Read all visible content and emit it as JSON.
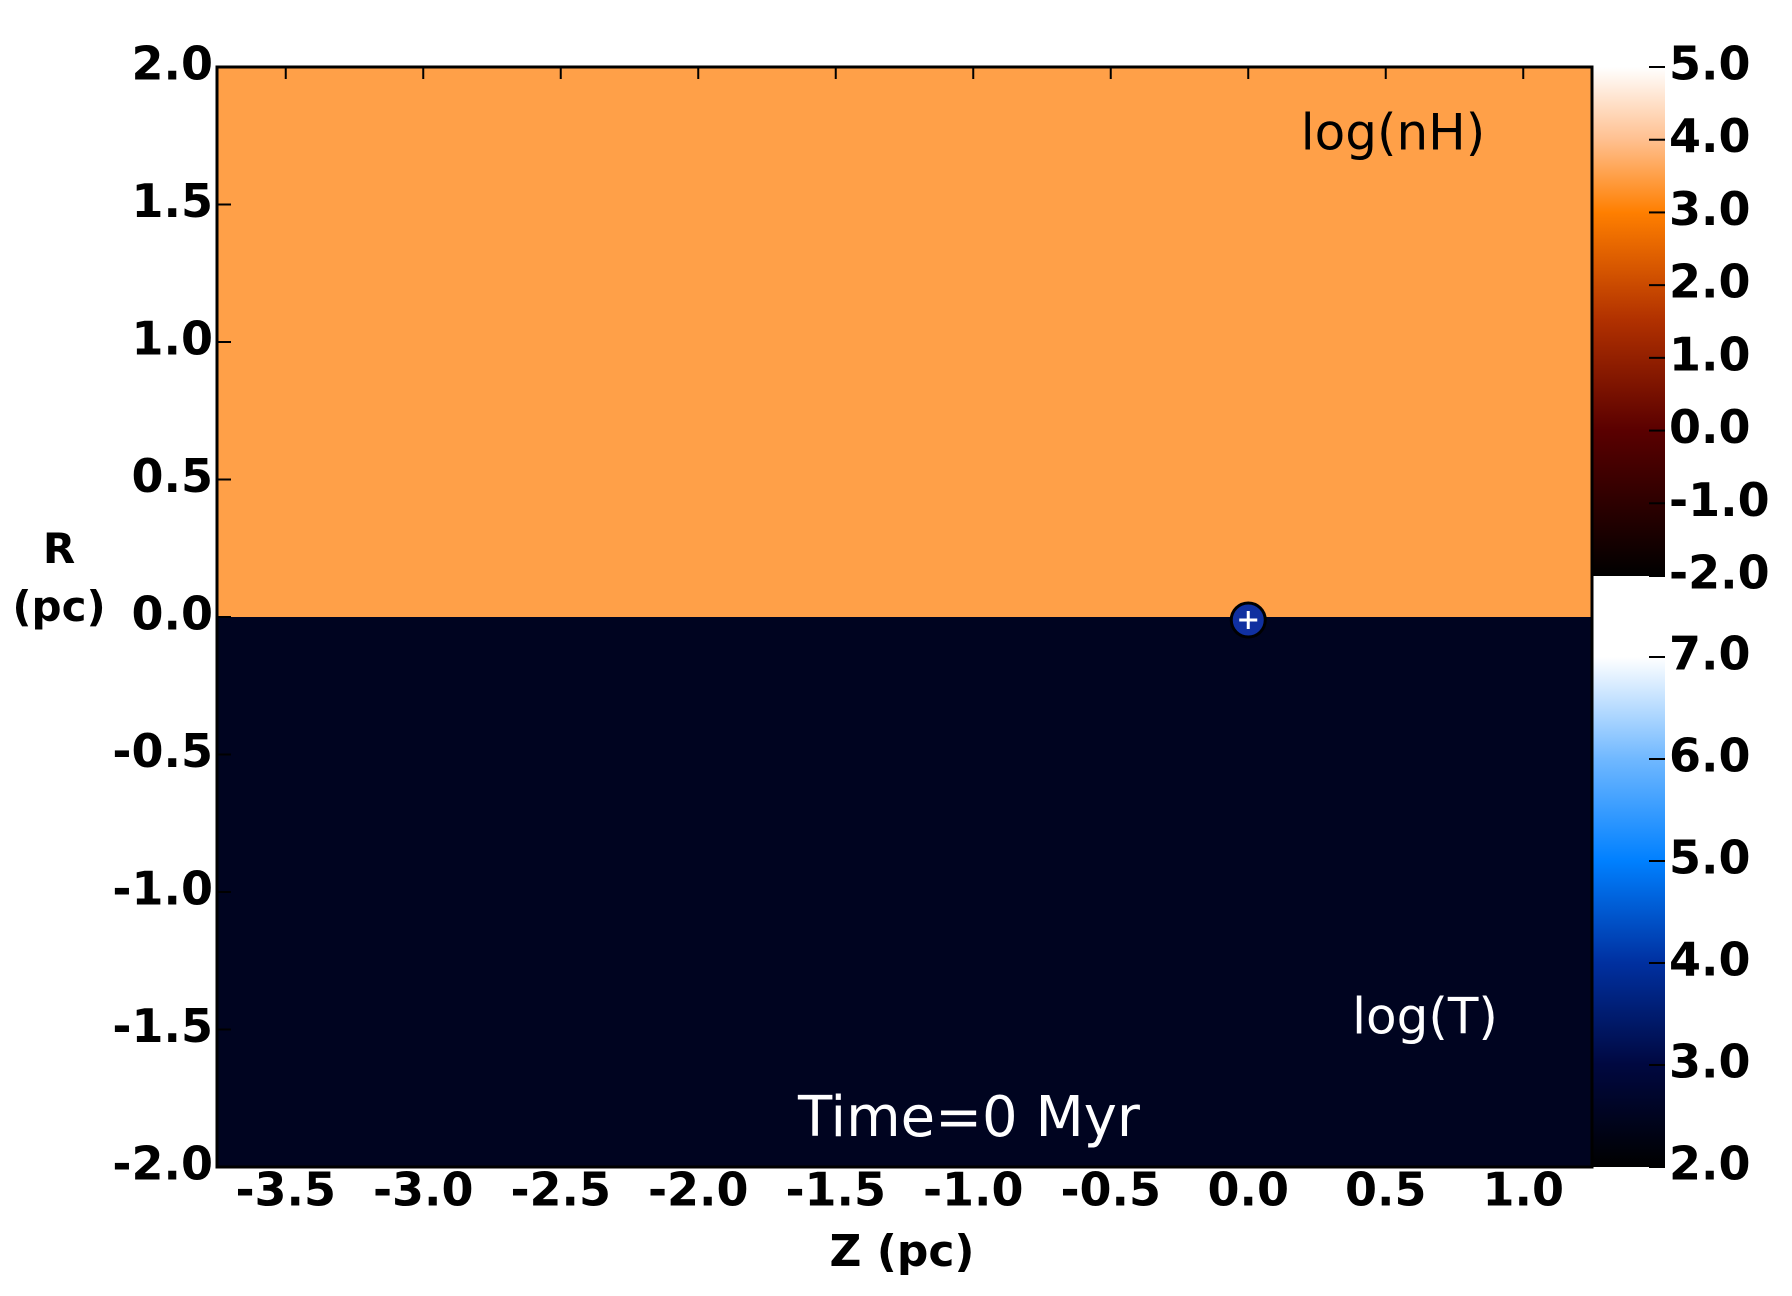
{
  "chart_data": {
    "type": "heatmap",
    "xlabel": "Z (pc)",
    "ylabel": "R (pc)",
    "xlim": [
      -3.75,
      1.25
    ],
    "xticks": [
      -3.5,
      {
        "value": -3,
        "label": "-3.0"
      },
      -2.5,
      {
        "value": -2,
        "label": "-2.0"
      },
      -1.5,
      {
        "value": -1,
        "label": "-1.0"
      },
      -0.5,
      {
        "value": 0,
        "label": "0.0"
      },
      0.5,
      {
        "value": 1,
        "label": "1.0"
      }
    ],
    "ylim": [
      -2,
      2
    ],
    "yticks": [
      {
        "value": -2,
        "label": "-2.0"
      },
      -1.5,
      {
        "value": -1,
        "label": "-1.0"
      },
      -0.5,
      {
        "value": 0,
        "label": "0.0"
      },
      0.5,
      {
        "value": 1,
        "label": "1.0"
      },
      1.5,
      {
        "value": 2,
        "label": "2.0"
      }
    ],
    "panels": [
      {
        "label": "log(nH)",
        "value": 3.5,
        "clim": [
          -2,
          5
        ],
        "cticks": [
          {
            "value": -2,
            "label": "-2.0"
          },
          {
            "value": -1,
            "label": "-1.0"
          },
          {
            "value": 0,
            "label": "0.0"
          },
          {
            "value": 1,
            "label": "1.0"
          },
          {
            "value": 2,
            "label": "2.0"
          },
          {
            "value": 3,
            "label": "3.0"
          },
          {
            "value": 4,
            "label": "4.0"
          },
          {
            "value": 5,
            "label": "5.0"
          }
        ],
        "cmap": [
          [
            -2,
            "#000000"
          ],
          [
            0,
            "#5a0000"
          ],
          [
            1.5,
            "#b03000"
          ],
          [
            3,
            "#ff7f00"
          ],
          [
            4,
            "#ffc090"
          ],
          [
            5,
            "#ffffff"
          ]
        ]
      },
      {
        "label": "log(T)",
        "value": 2.5,
        "clim": [
          2,
          7
        ],
        "cticks": [
          {
            "value": 2,
            "label": "2.0"
          },
          {
            "value": 3,
            "label": "3.0"
          },
          {
            "value": 4,
            "label": "4.0"
          },
          {
            "value": 5,
            "label": "5.0"
          },
          {
            "value": 6,
            "label": "6.0"
          },
          {
            "value": 7,
            "label": "7.0"
          }
        ],
        "cmap": [
          [
            2,
            "#000000"
          ],
          [
            3,
            "#000840"
          ],
          [
            4,
            "#0030a0"
          ],
          [
            5,
            "#0080ff"
          ],
          [
            6,
            "#70b8ff"
          ],
          [
            7,
            "#ffffff"
          ]
        ]
      }
    ],
    "source": {
      "x": 0,
      "y": 0
    },
    "annotation": "Time=0 Myr"
  }
}
